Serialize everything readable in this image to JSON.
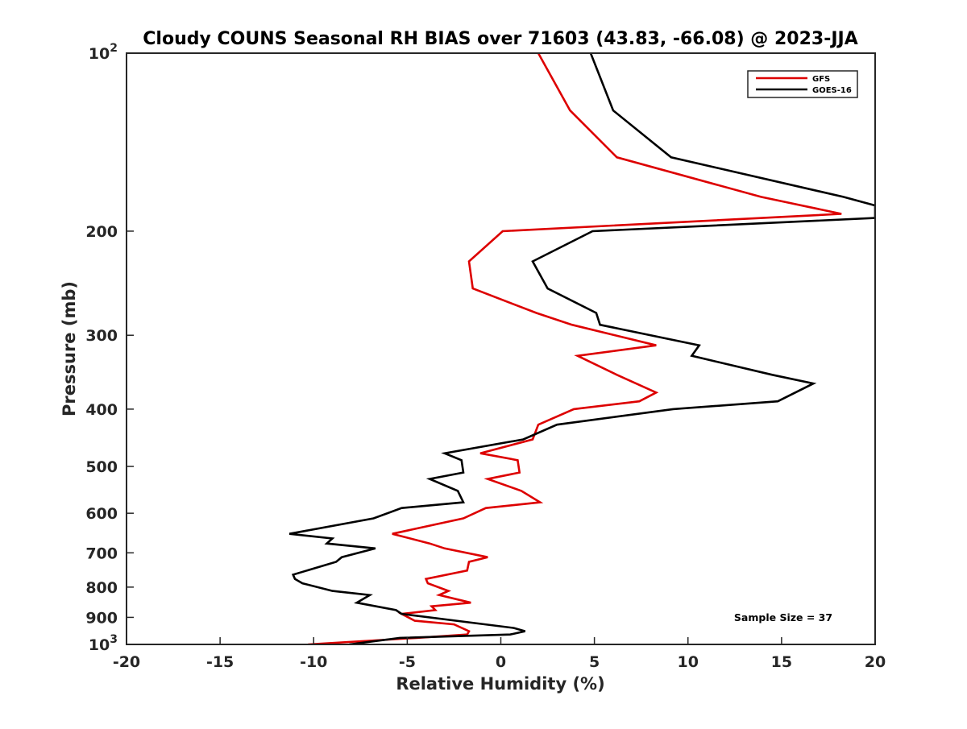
{
  "chart_data": {
    "type": "line",
    "title": "Cloudy COUNS Seasonal RH BIAS over 71603 (43.83, -66.08) @ 2023-JJA",
    "xlabel": "Relative Humidity (%)",
    "ylabel": "Pressure (mb)",
    "xlim": [
      -20,
      20
    ],
    "ylim": [
      100,
      1000
    ],
    "yscale": "log",
    "yreversed": true,
    "xticks": [
      -20,
      -15,
      -10,
      -5,
      0,
      5,
      10,
      15,
      20
    ],
    "xtick_labels": [
      "-20",
      "-15",
      "-10",
      "-5",
      "0",
      "5",
      "10",
      "15",
      "20"
    ],
    "ytick_values": [
      100,
      200,
      300,
      400,
      500,
      600,
      700,
      800,
      900,
      1000
    ],
    "ytick_labels": [
      {
        "base": "10",
        "exp": "2"
      },
      {
        "base": "200",
        "exp": ""
      },
      {
        "base": "300",
        "exp": ""
      },
      {
        "base": "400",
        "exp": ""
      },
      {
        "base": "500",
        "exp": ""
      },
      {
        "base": "600",
        "exp": ""
      },
      {
        "base": "700",
        "exp": ""
      },
      {
        "base": "800",
        "exp": ""
      },
      {
        "base": "900",
        "exp": ""
      },
      {
        "base": "10",
        "exp": "3"
      }
    ],
    "legend_position": "top-right",
    "annotation": "Sample Size = 37",
    "series": [
      {
        "name": "GFS",
        "color": "#dd0000",
        "points": [
          [
            2.0,
            100
          ],
          [
            3.7,
            125
          ],
          [
            6.2,
            150
          ],
          [
            13.9,
            175
          ],
          [
            18.2,
            187
          ],
          [
            0.1,
            200
          ],
          [
            -1.7,
            225
          ],
          [
            -1.5,
            250
          ],
          [
            1.9,
            275
          ],
          [
            3.8,
            288
          ],
          [
            8.3,
            312
          ],
          [
            4.1,
            325
          ],
          [
            6.2,
            350
          ],
          [
            8.3,
            375
          ],
          [
            7.4,
            388
          ],
          [
            3.9,
            400
          ],
          [
            2.0,
            425
          ],
          [
            1.7,
            450
          ],
          [
            -1.1,
            475
          ],
          [
            0.9,
            488
          ],
          [
            1.0,
            512
          ],
          [
            -0.7,
            525
          ],
          [
            1.1,
            550
          ],
          [
            2.1,
            575
          ],
          [
            -0.8,
            588
          ],
          [
            -2.0,
            612
          ],
          [
            -5.8,
            650
          ],
          [
            -3.8,
            675
          ],
          [
            -3.0,
            688
          ],
          [
            -0.7,
            712
          ],
          [
            -1.7,
            725
          ],
          [
            -1.8,
            750
          ],
          [
            -4.0,
            775
          ],
          [
            -3.9,
            788
          ],
          [
            -2.8,
            812
          ],
          [
            -3.3,
            825
          ],
          [
            -1.6,
            850
          ],
          [
            -3.7,
            862
          ],
          [
            -3.5,
            875
          ],
          [
            -5.3,
            888
          ],
          [
            -4.6,
            912
          ],
          [
            -2.5,
            925
          ],
          [
            -1.7,
            950
          ],
          [
            -1.8,
            962
          ],
          [
            -4.5,
            975
          ],
          [
            -10.3,
            1000
          ]
        ]
      },
      {
        "name": "GOES-16",
        "color": "#000000",
        "points": [
          [
            4.8,
            100
          ],
          [
            6.0,
            125
          ],
          [
            9.1,
            150
          ],
          [
            18.3,
            175
          ],
          [
            20.0,
            181
          ],
          [
            20.0,
            190
          ],
          [
            4.9,
            200
          ],
          [
            1.7,
            225
          ],
          [
            2.5,
            250
          ],
          [
            5.1,
            275
          ],
          [
            5.3,
            288
          ],
          [
            10.6,
            312
          ],
          [
            10.2,
            325
          ],
          [
            14.5,
            350
          ],
          [
            16.7,
            362
          ],
          [
            14.8,
            388
          ],
          [
            9.2,
            400
          ],
          [
            3.0,
            425
          ],
          [
            1.2,
            450
          ],
          [
            -3.0,
            475
          ],
          [
            -2.1,
            488
          ],
          [
            -2.0,
            512
          ],
          [
            -3.8,
            525
          ],
          [
            -2.3,
            550
          ],
          [
            -2.0,
            575
          ],
          [
            -5.3,
            588
          ],
          [
            -6.8,
            612
          ],
          [
            -11.3,
            650
          ],
          [
            -9.0,
            662
          ],
          [
            -9.3,
            675
          ],
          [
            -6.7,
            688
          ],
          [
            -8.5,
            712
          ],
          [
            -8.8,
            725
          ],
          [
            -11.1,
            762
          ],
          [
            -11.0,
            775
          ],
          [
            -10.6,
            788
          ],
          [
            -9.0,
            812
          ],
          [
            -7.0,
            825
          ],
          [
            -7.7,
            850
          ],
          [
            -5.6,
            875
          ],
          [
            -5.3,
            888
          ],
          [
            0.7,
            938
          ],
          [
            1.3,
            950
          ],
          [
            0.5,
            962
          ],
          [
            -5.4,
            975
          ],
          [
            -8.1,
            1000
          ]
        ]
      }
    ]
  }
}
